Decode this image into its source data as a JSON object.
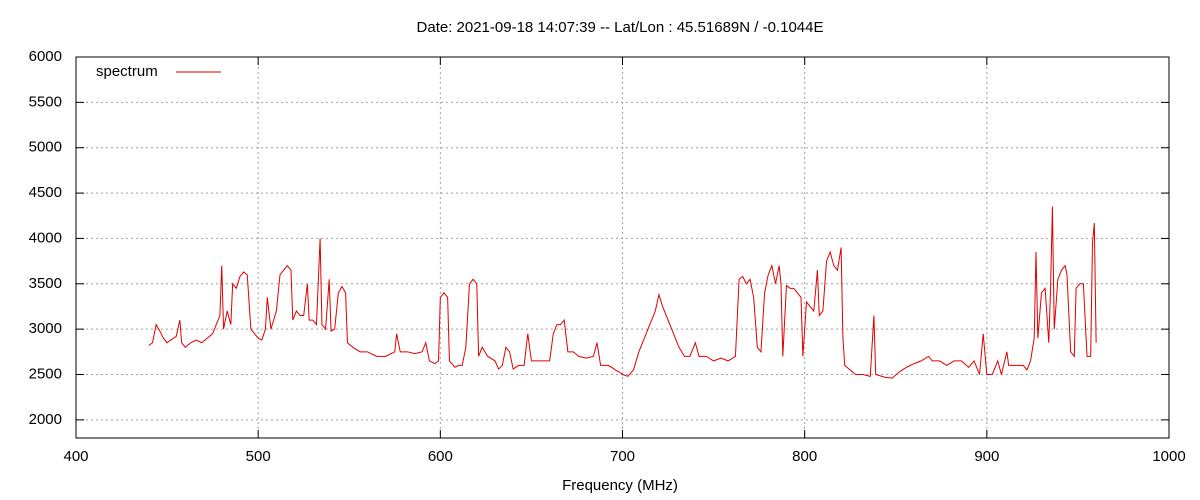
{
  "chart_data": {
    "type": "line",
    "title": "Date: 2021-09-18 14:07:39  --  Lat/Lon : 45.51689N / -0.1044E",
    "x_label": "Frequency (MHz)",
    "xlim": [
      400,
      1000
    ],
    "xticks": [
      400,
      500,
      600,
      700,
      800,
      900,
      1000
    ],
    "ylim": [
      1800,
      6000
    ],
    "yticks": [
      2000,
      2500,
      3000,
      3500,
      4000,
      4500,
      5000,
      5500,
      6000
    ],
    "grid": true,
    "legend": "top-left",
    "x": [
      440,
      442,
      444,
      446,
      448,
      450,
      452,
      455,
      457,
      458,
      460,
      463,
      466,
      469,
      472,
      475,
      477,
      479,
      480,
      481,
      483,
      485,
      486,
      488,
      490,
      492,
      494,
      496,
      498,
      500,
      502,
      504,
      505,
      507,
      510,
      512,
      514,
      516,
      518,
      519,
      521,
      523,
      525,
      527,
      528,
      530,
      532,
      534,
      535,
      537,
      539,
      540,
      542,
      544,
      546,
      548,
      549,
      552,
      556,
      560,
      565,
      570,
      575,
      576,
      578,
      582,
      586,
      590,
      592,
      594,
      597,
      599,
      600,
      602,
      604,
      605,
      608,
      610,
      612,
      614,
      616,
      618,
      620,
      621,
      623,
      626,
      630,
      632,
      634,
      636,
      638,
      640,
      643,
      646,
      648,
      650,
      653,
      656,
      660,
      662,
      664,
      666,
      668,
      670,
      673,
      676,
      680,
      684,
      686,
      688,
      692,
      694,
      696,
      698,
      700,
      703,
      706,
      709,
      712,
      715,
      718,
      720,
      722,
      725,
      728,
      731,
      734,
      737,
      740,
      742,
      746,
      750,
      754,
      758,
      762,
      764,
      766,
      768,
      770,
      772,
      774,
      776,
      778,
      780,
      782,
      784,
      786,
      787,
      788,
      790,
      792,
      794,
      796,
      798,
      799,
      801,
      803,
      805,
      807,
      808,
      810,
      812,
      814,
      816,
      818,
      820,
      821,
      822,
      825,
      828,
      832,
      836,
      838,
      839,
      844,
      848,
      852,
      856,
      860,
      864,
      868,
      870,
      874,
      878,
      882,
      886,
      890,
      893,
      896,
      898,
      900,
      903,
      906,
      908,
      911,
      912,
      916,
      920,
      922,
      924,
      926,
      927,
      928,
      930,
      932,
      934,
      935,
      936,
      937,
      939,
      941,
      943,
      944,
      946,
      948,
      949,
      951,
      953,
      955,
      957,
      958,
      959,
      960
    ],
    "series": [
      {
        "name": "spectrum",
        "color": "#e00000",
        "values": [
          2820,
          2850,
          3050,
          2980,
          2900,
          2850,
          2880,
          2920,
          3100,
          2850,
          2800,
          2850,
          2880,
          2850,
          2900,
          2950,
          3050,
          3150,
          3700,
          3000,
          3200,
          3050,
          3500,
          3450,
          3580,
          3630,
          3600,
          3000,
          2950,
          2900,
          2880,
          3000,
          3350,
          3000,
          3200,
          3600,
          3650,
          3700,
          3650,
          3100,
          3200,
          3150,
          3150,
          3500,
          3100,
          3100,
          3050,
          4000,
          3050,
          3000,
          3550,
          2980,
          3000,
          3400,
          3470,
          3400,
          2850,
          2800,
          2750,
          2750,
          2700,
          2700,
          2750,
          2950,
          2750,
          2750,
          2730,
          2750,
          2850,
          2650,
          2620,
          2650,
          3350,
          3400,
          3350,
          2650,
          2580,
          2600,
          2600,
          2800,
          3500,
          3550,
          3500,
          2700,
          2800,
          2700,
          2650,
          2560,
          2600,
          2800,
          2750,
          2560,
          2600,
          2600,
          2950,
          2650,
          2650,
          2650,
          2650,
          2950,
          3050,
          3050,
          3100,
          2750,
          2750,
          2700,
          2680,
          2700,
          2850,
          2600,
          2600,
          2580,
          2550,
          2530,
          2500,
          2480,
          2550,
          2750,
          2900,
          3050,
          3200,
          3380,
          3250,
          3100,
          2950,
          2800,
          2700,
          2700,
          2850,
          2700,
          2700,
          2650,
          2680,
          2650,
          2700,
          3550,
          3580,
          3500,
          3550,
          3350,
          2800,
          2750,
          3400,
          3600,
          3700,
          3500,
          3700,
          3500,
          2700,
          3480,
          3450,
          3450,
          3400,
          3350,
          2700,
          3300,
          3250,
          3200,
          3650,
          3150,
          3200,
          3750,
          3850,
          3700,
          3650,
          3900,
          2900,
          2600,
          2550,
          2500,
          2500,
          2480,
          3150,
          2500,
          2470,
          2460,
          2530,
          2580,
          2620,
          2650,
          2700,
          2650,
          2650,
          2600,
          2650,
          2650,
          2580,
          2650,
          2500,
          2950,
          2500,
          2500,
          2650,
          2500,
          2750,
          2600,
          2600,
          2600,
          2550,
          2650,
          2900,
          3850,
          2900,
          3400,
          3450,
          2850,
          3450,
          4350,
          3000,
          3550,
          3650,
          3700,
          3600,
          2750,
          2700,
          3450,
          3500,
          3500,
          2700,
          2700,
          3950,
          4170,
          2850
        ]
      }
    ]
  }
}
